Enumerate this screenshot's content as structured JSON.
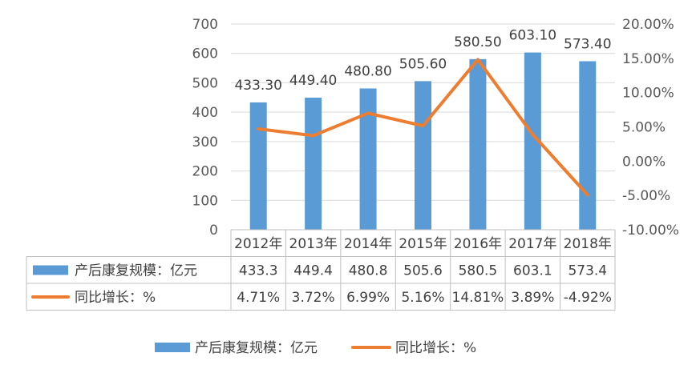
{
  "chart_data": {
    "type": "bar+line",
    "categories": [
      "2012年",
      "2013年",
      "2014年",
      "2015年",
      "2016年",
      "2017年",
      "2018年"
    ],
    "series": [
      {
        "name": "产后康复规模：亿元",
        "type": "bar",
        "axis": "left",
        "color": "#5B9BD5",
        "values": [
          433.3,
          449.4,
          480.8,
          505.6,
          580.5,
          603.1,
          573.4
        ],
        "data_labels": [
          "433.30",
          "449.40",
          "480.80",
          "505.60",
          "580.50",
          "603.10",
          "573.40"
        ],
        "table_values": [
          "433.3",
          "449.4",
          "480.8",
          "505.6",
          "580.5",
          "603.1",
          "573.4"
        ]
      },
      {
        "name": "同比增长：%",
        "type": "line",
        "axis": "right",
        "color": "#ED7D31",
        "values": [
          4.71,
          3.72,
          6.99,
          5.16,
          14.81,
          3.89,
          -4.92
        ],
        "table_values": [
          "4.71%",
          "3.72%",
          "6.99%",
          "5.16%",
          "14.81%",
          "3.89%",
          "-4.92%"
        ]
      }
    ],
    "y_left": {
      "ylim": [
        0,
        700
      ],
      "ticks": [
        "0",
        "100",
        "200",
        "300",
        "400",
        "500",
        "600",
        "700"
      ]
    },
    "y_right": {
      "ylim": [
        -10,
        20
      ],
      "ticks": [
        "-10.00%",
        "-5.00%",
        "0.00%",
        "5.00%",
        "10.00%",
        "15.00%",
        "20.00%"
      ]
    },
    "grid": true,
    "legend_position": "bottom",
    "data_table": true
  }
}
